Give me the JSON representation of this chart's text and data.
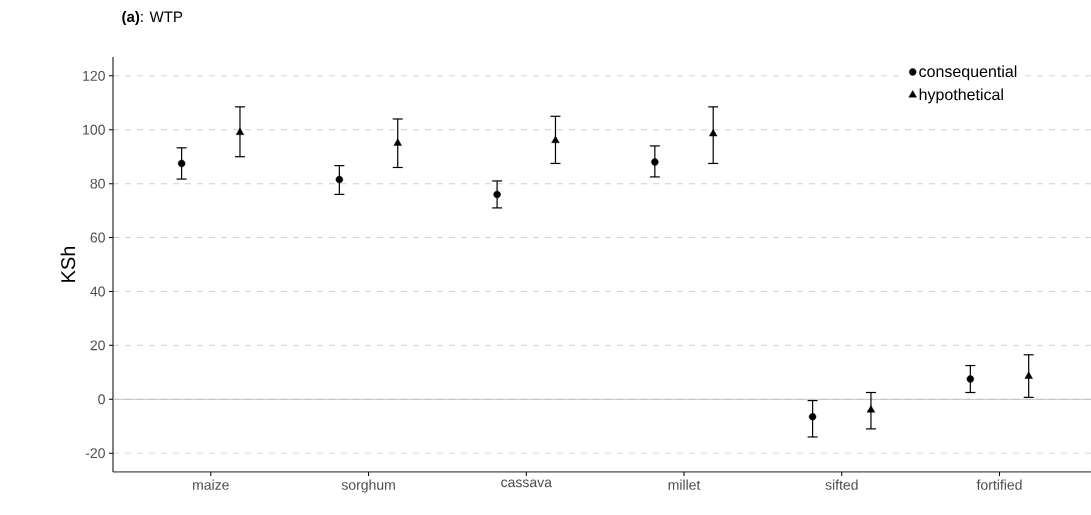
{
  "chart_data": {
    "type": "scatter",
    "title": "**(a)**: WTP",
    "ylabel": "KSh",
    "categories": [
      "maize",
      "sorghum",
      "cassava",
      "millet",
      "sifted",
      "fortified"
    ],
    "series": [
      {
        "name": "consequential",
        "color": "#000000",
        "marker": "circle",
        "values": [
          87.5,
          81.5,
          76,
          88,
          -6.5,
          7.5
        ],
        "errors": [
          [
            81.7,
            93.3
          ],
          [
            76,
            86.7
          ],
          [
            71,
            81
          ],
          [
            82.5,
            94
          ],
          [
            -14,
            -0.5
          ],
          [
            2.5,
            12.5
          ]
        ]
      },
      {
        "name": "hypothetical",
        "color": "#000000",
        "marker": "triangle",
        "values": [
          99,
          95,
          96,
          98.5,
          -4,
          8.5
        ],
        "errors": [
          [
            90,
            108.5
          ],
          [
            86,
            104
          ],
          [
            87.5,
            105
          ],
          [
            87.5,
            108.5
          ],
          [
            -11,
            2.5
          ],
          [
            0.7,
            16.5
          ]
        ]
      }
    ],
    "ylim": [
      -27,
      127
    ],
    "yticks": [
      -20,
      0,
      20,
      40,
      60,
      80,
      100,
      120
    ],
    "grid": "y",
    "legend": "top right",
    "ref_lines": [
      {
        "axis": "y",
        "value": 0,
        "color": "#bebebe",
        "line_style": "solid"
      }
    ]
  }
}
